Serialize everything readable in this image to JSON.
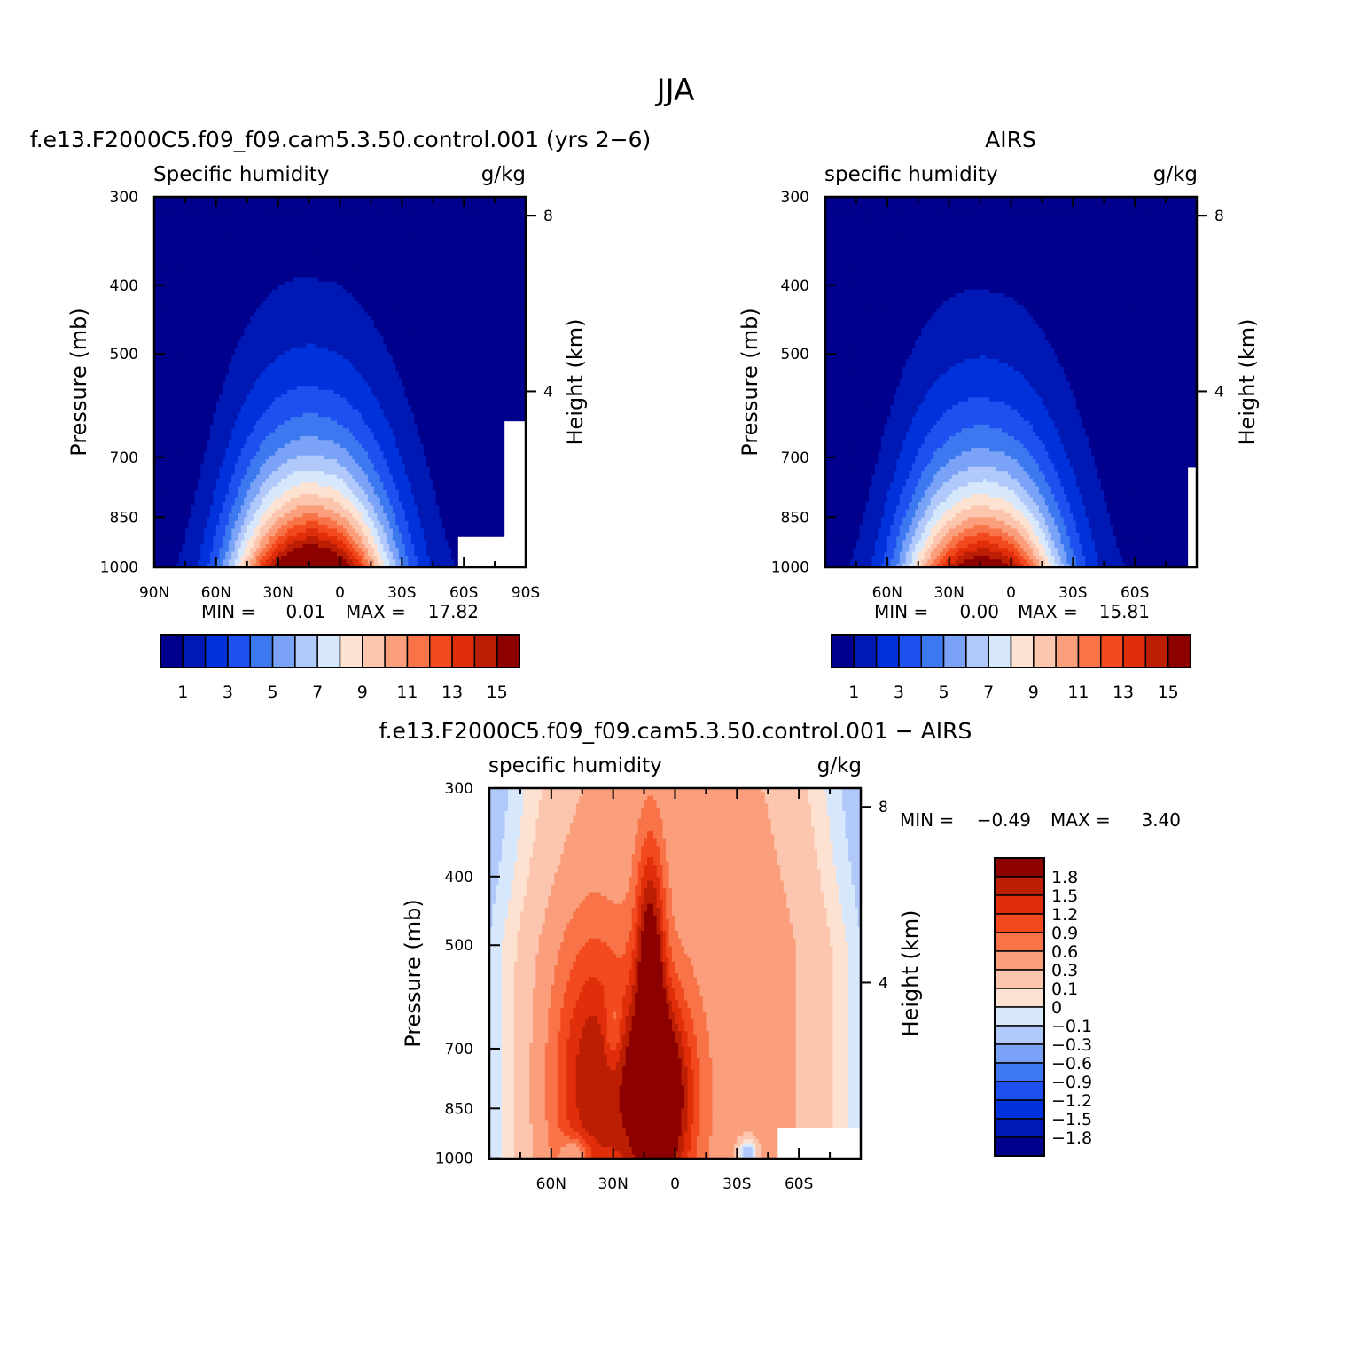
{
  "figure_title": "JJA",
  "chart_data": [
    {
      "type": "contour",
      "title": "f.e13.F2000C5.f09_f09.cam5.3.50.control.001 (yrs 2−6)",
      "variable_label": "Specific humidity",
      "units_label": "g/kg",
      "ylabel": "Pressure (mb)",
      "ylabel_right": "Height (km)",
      "x_ticks": [
        "90N",
        "60N",
        "30N",
        "0",
        "30S",
        "60S",
        "90S"
      ],
      "y_ticks": [
        "300",
        "400",
        "500",
        "700",
        "850",
        "1000"
      ],
      "y_ticks_right": [
        "8",
        "4"
      ],
      "ylim": [
        1000,
        300
      ],
      "stats": {
        "min_label": "MIN =",
        "min": "0.01",
        "max_label": "MAX =",
        "max": "17.82"
      },
      "levels": [
        1,
        2,
        3,
        4,
        5,
        6,
        7,
        8,
        9,
        10,
        11,
        12,
        13,
        14,
        15
      ],
      "colorbar_labels": [
        "1",
        "3",
        "5",
        "7",
        "9",
        "11",
        "13",
        "15"
      ],
      "peak": {
        "lat": 10,
        "pressure": 1000,
        "value": 17.82
      }
    },
    {
      "type": "contour",
      "title": "AIRS",
      "variable_label": "specific humidity",
      "units_label": "g/kg",
      "ylabel": "Pressure (mb)",
      "ylabel_right": "Height (km)",
      "x_ticks": [
        "60N",
        "30N",
        "0",
        "30S",
        "60S"
      ],
      "y_ticks": [
        "300",
        "400",
        "500",
        "700",
        "850",
        "1000"
      ],
      "y_ticks_right": [
        "8",
        "4"
      ],
      "ylim": [
        1000,
        300
      ],
      "stats": {
        "min_label": "MIN =",
        "min": "0.00",
        "max_label": "MAX =",
        "max": "15.81"
      },
      "levels": [
        1,
        2,
        3,
        4,
        5,
        6,
        7,
        8,
        9,
        10,
        11,
        12,
        13,
        14,
        15
      ],
      "colorbar_labels": [
        "1",
        "3",
        "5",
        "7",
        "9",
        "11",
        "13",
        "15"
      ],
      "peak": {
        "lat": 10,
        "pressure": 1000,
        "value": 15.81
      }
    },
    {
      "type": "contour",
      "title": "f.e13.F2000C5.f09_f09.cam5.3.50.control.001 − AIRS",
      "variable_label": "specific humidity",
      "units_label": "g/kg",
      "ylabel": "Pressure (mb)",
      "ylabel_right": "Height (km)",
      "x_ticks": [
        "60N",
        "30N",
        "0",
        "30S",
        "60S"
      ],
      "y_ticks": [
        "300",
        "400",
        "500",
        "700",
        "850",
        "1000"
      ],
      "y_ticks_right": [
        "8",
        "4"
      ],
      "ylim": [
        1000,
        300
      ],
      "stats": {
        "min_label": "MIN =",
        "min": "−0.49",
        "max_label": "MAX =",
        "max": "3.40"
      },
      "levels": [
        -1.8,
        -1.5,
        -1.2,
        -0.9,
        -0.6,
        -0.3,
        -0.1,
        0,
        0.1,
        0.3,
        0.6,
        0.9,
        1.2,
        1.5,
        1.8
      ],
      "colorbar_labels": [
        "1.8",
        "1.5",
        "1.2",
        "0.9",
        "0.6",
        "0.3",
        "0.1",
        "0",
        "−0.1",
        "−0.3",
        "−0.6",
        "−0.9",
        "−1.2",
        "−1.5",
        "−1.8"
      ]
    }
  ],
  "colors": {
    "palette": [
      "#00008c",
      "#0019b4",
      "#0032dc",
      "#1e50f0",
      "#3c78f0",
      "#7aa2f6",
      "#b0c8fa",
      "#d7e8fc",
      "#fde2d2",
      "#fcc6ae",
      "#fa9e7c",
      "#f87448",
      "#f24a1e",
      "#e02e0a",
      "#bc1e04",
      "#8c0000"
    ]
  }
}
